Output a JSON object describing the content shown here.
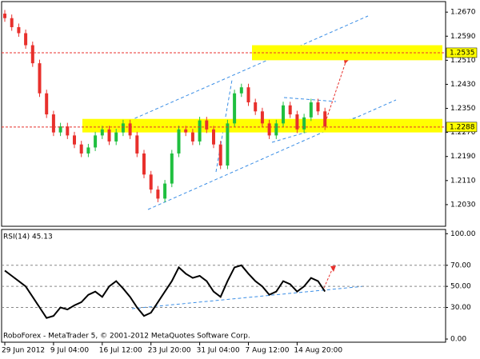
{
  "chart_data": [
    {
      "type": "candlestick",
      "open": [
        1.2665,
        1.265,
        1.262,
        1.26,
        1.256,
        1.25,
        1.24,
        1.233,
        1.227,
        1.229,
        1.226,
        1.223,
        1.22,
        1.222,
        1.226,
        1.228,
        1.224,
        1.227,
        1.23,
        1.226,
        1.22,
        1.213,
        1.208,
        1.205,
        1.21,
        1.22,
        1.228,
        1.227,
        1.224,
        1.231,
        1.228,
        1.223,
        1.216,
        1.23,
        1.24,
        1.242,
        1.237,
        1.234,
        1.23,
        1.226,
        1.23,
        1.236,
        1.233,
        1.228,
        1.232,
        1.237,
        1.234
      ],
      "high": [
        1.2677,
        1.2662,
        1.2632,
        1.2612,
        1.2572,
        1.2512,
        1.2412,
        1.2342,
        1.2302,
        1.2302,
        1.2272,
        1.2242,
        1.2232,
        1.2272,
        1.2292,
        1.2292,
        1.2282,
        1.2312,
        1.2312,
        1.2272,
        1.2212,
        1.2142,
        1.2092,
        1.2112,
        1.2212,
        1.2292,
        1.2292,
        1.2282,
        1.2322,
        1.2322,
        1.2292,
        1.2242,
        1.2312,
        1.2412,
        1.2432,
        1.2432,
        1.2382,
        1.2352,
        1.2312,
        1.2312,
        1.2372,
        1.2372,
        1.2342,
        1.2332,
        1.2382,
        1.2382,
        1.2352
      ],
      "low": [
        1.2638,
        1.2608,
        1.2588,
        1.2548,
        1.2488,
        1.2388,
        1.2318,
        1.2258,
        1.2258,
        1.2248,
        1.2218,
        1.2188,
        1.2188,
        1.2208,
        1.2248,
        1.2228,
        1.2228,
        1.2258,
        1.2248,
        1.2188,
        1.2118,
        1.2068,
        1.2038,
        1.2038,
        1.2088,
        1.2188,
        1.2258,
        1.2228,
        1.2228,
        1.2268,
        1.2218,
        1.2148,
        1.2148,
        1.2288,
        1.2388,
        1.2358,
        1.2328,
        1.2288,
        1.2248,
        1.2248,
        1.2288,
        1.2318,
        1.2268,
        1.2268,
        1.2308,
        1.2328,
        1.2278
      ],
      "close": [
        1.265,
        1.262,
        1.26,
        1.256,
        1.25,
        1.24,
        1.233,
        1.227,
        1.229,
        1.226,
        1.223,
        1.22,
        1.222,
        1.226,
        1.228,
        1.224,
        1.227,
        1.23,
        1.226,
        1.22,
        1.213,
        1.208,
        1.205,
        1.21,
        1.22,
        1.228,
        1.227,
        1.224,
        1.231,
        1.228,
        1.223,
        1.216,
        1.23,
        1.24,
        1.242,
        1.237,
        1.234,
        1.23,
        1.226,
        1.23,
        1.236,
        1.233,
        1.228,
        1.232,
        1.237,
        1.234,
        1.229
      ],
      "up_color": "#1fbf3f",
      "down_color": "#e8302c",
      "ylim": [
        1.1958,
        1.2705
      ],
      "yticks": [
        {
          "value": 1.267,
          "label": "1.2670"
        },
        {
          "value": 1.259,
          "label": "1.2590"
        },
        {
          "value": 1.251,
          "label": "1.2510"
        },
        {
          "value": 1.243,
          "label": "1.2430"
        },
        {
          "value": 1.235,
          "label": "1.2350"
        },
        {
          "value": 1.227,
          "label": "1.2270"
        },
        {
          "value": 1.219,
          "label": "1.2190"
        },
        {
          "value": 1.211,
          "label": "1.2110"
        },
        {
          "value": 1.203,
          "label": "1.2030"
        }
      ],
      "levels": [
        1.2535,
        1.2288
      ],
      "level_color": "#e8302c",
      "zones": [
        [
          1.251,
          1.256
        ],
        [
          1.227,
          1.2315
        ]
      ],
      "zone_color": "#ffff00"
    },
    {
      "type": "line",
      "title": "RSI(14) 45.13",
      "categories": [
        "29 Jun 2012",
        null,
        null,
        null,
        null,
        null,
        null,
        "9 Jul 04:00",
        null,
        null,
        null,
        null,
        null,
        null,
        "16 Jul 12:00",
        null,
        null,
        null,
        null,
        null,
        null,
        "23 Jul 20:00",
        null,
        null,
        null,
        null,
        null,
        null,
        "31 Jul 04:00",
        null,
        null,
        null,
        null,
        null,
        null,
        "7 Aug 12:00",
        null,
        null,
        null,
        null,
        null,
        null,
        "14 Aug 20:00",
        null,
        null,
        null,
        null
      ],
      "values": [
        65,
        60,
        55,
        50,
        40,
        30,
        20,
        22,
        30,
        28,
        32,
        35,
        42,
        45,
        40,
        50,
        55,
        48,
        40,
        30,
        22,
        25,
        35,
        45,
        55,
        68,
        62,
        58,
        60,
        55,
        45,
        40,
        55,
        68,
        70,
        62,
        55,
        50,
        42,
        45,
        55,
        52,
        45,
        50,
        58,
        55,
        45.13
      ],
      "color": "#000000",
      "ylim": [
        -3,
        104
      ],
      "yticks": [
        {
          "value": 100,
          "label": "100.00"
        },
        {
          "value": 70,
          "label": "70.00"
        },
        {
          "value": 50,
          "label": "50.00"
        },
        {
          "value": 30,
          "label": "30.00"
        },
        {
          "value": 0,
          "label": "0.00"
        }
      ]
    }
  ],
  "footer": "RoboForex - MetaTrader 5, © 2001-2012 MetaQuotes Software Corp."
}
